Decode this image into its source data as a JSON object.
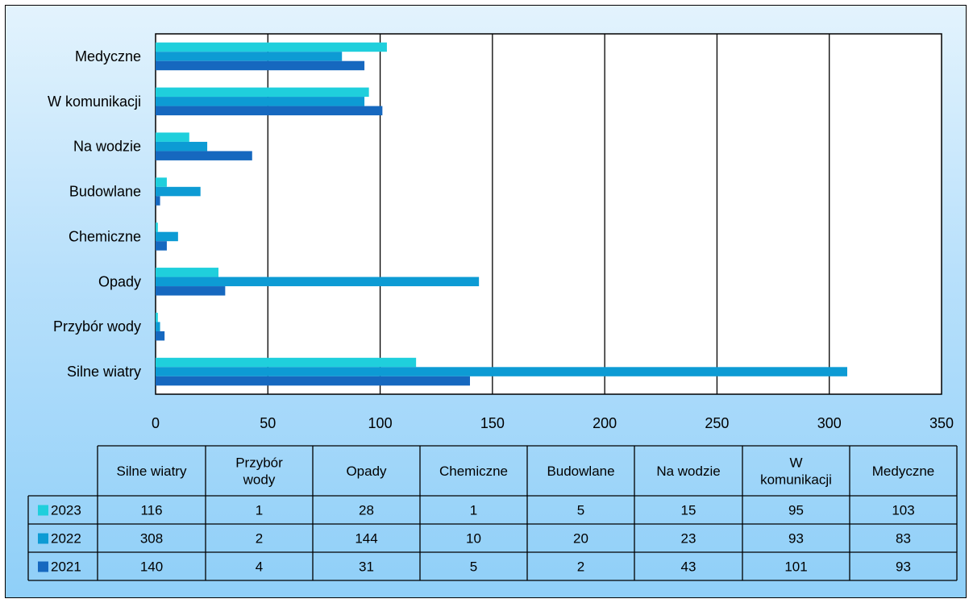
{
  "chart_data": {
    "type": "bar",
    "orientation": "horizontal",
    "categories": [
      "Silne wiatry",
      "Przybór wody",
      "Opady",
      "Chemiczne",
      "Budowlane",
      "Na wodzie",
      "W komunikacji",
      "Medyczne"
    ],
    "table_headers": [
      [
        "Silne wiatry"
      ],
      [
        "Przybór",
        "wody"
      ],
      [
        "Opady"
      ],
      [
        "Chemiczne"
      ],
      [
        "Budowlane"
      ],
      [
        "Na wodzie"
      ],
      [
        "W",
        "komunikacji"
      ],
      [
        "Medyczne"
      ]
    ],
    "series": [
      {
        "name": "2023",
        "color": "#1fcfdc",
        "values": [
          116,
          1,
          28,
          1,
          5,
          15,
          95,
          103
        ]
      },
      {
        "name": "2022",
        "color": "#0d9bd4",
        "values": [
          308,
          2,
          144,
          10,
          20,
          23,
          93,
          83
        ]
      },
      {
        "name": "2021",
        "color": "#1668bf",
        "values": [
          140,
          4,
          31,
          5,
          2,
          43,
          101,
          93
        ]
      }
    ],
    "xlim": [
      0,
      350
    ],
    "xticks": [
      0,
      50,
      100,
      150,
      200,
      250,
      300,
      350
    ],
    "grid": "vertical major gridlines",
    "legend": "data table below chart"
  }
}
